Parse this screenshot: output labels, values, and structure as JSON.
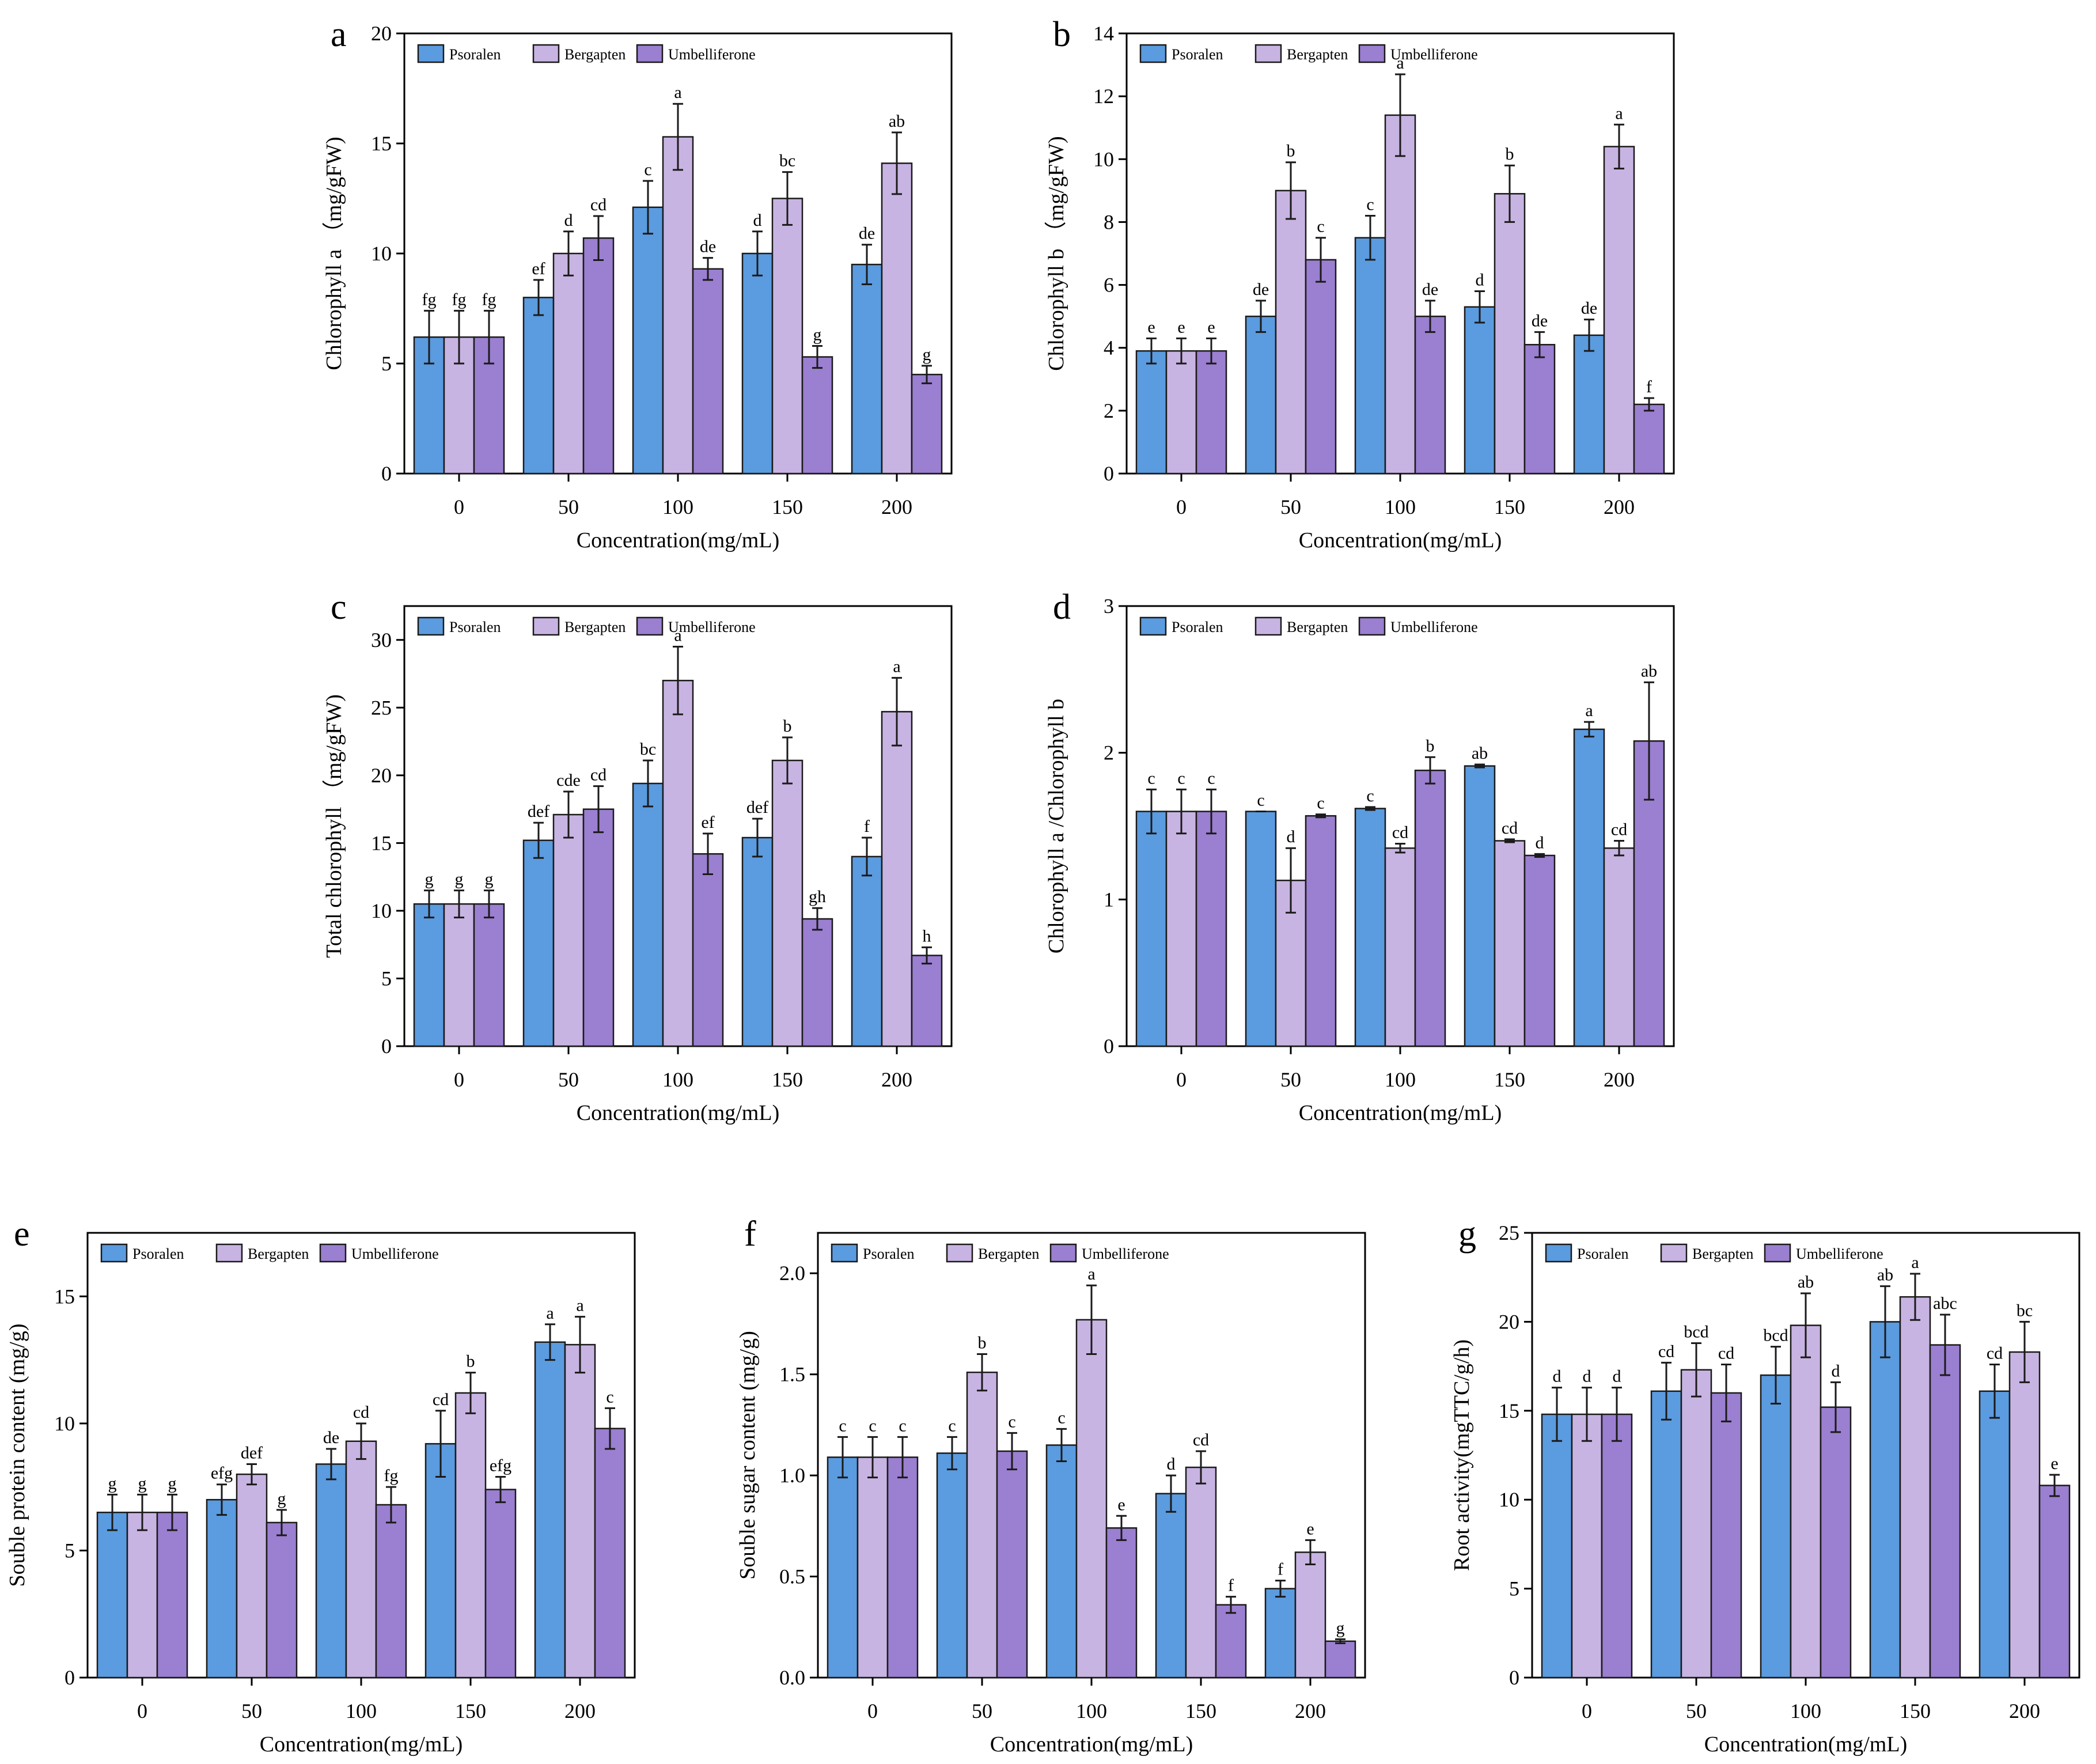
{
  "colors": {
    "psoralen": "#5b9bdf",
    "bergapten": "#c8b4e2",
    "umbelliferone": "#9b7fd0"
  },
  "chart_data": [
    {
      "panel": "a",
      "type": "bar",
      "xlabel": "Concentration(mg/mL)",
      "ylabel": "Chlorophyll a （mg/gFW)",
      "categories": [
        "0",
        "50",
        "100",
        "150",
        "200"
      ],
      "ylim": [
        0,
        20
      ],
      "yticks": [
        0,
        5,
        10,
        15,
        20
      ],
      "ytick_labels": [
        "0",
        "5",
        "10",
        "15",
        "20"
      ],
      "legend": [
        "Psoralen",
        "Bergapten",
        "Umbelliferone"
      ],
      "series": [
        {
          "name": "Psoralen",
          "values": [
            6.2,
            8.0,
            12.1,
            10.0,
            9.5
          ],
          "errors": [
            1.2,
            0.8,
            1.2,
            1.0,
            0.9
          ],
          "labels": [
            "fg",
            "ef",
            "c",
            "d",
            "de"
          ]
        },
        {
          "name": "Bergapten",
          "values": [
            6.2,
            10.0,
            15.3,
            12.5,
            14.1
          ],
          "errors": [
            1.2,
            1.0,
            1.5,
            1.2,
            1.4
          ],
          "labels": [
            "fg",
            "d",
            "a",
            "bc",
            "ab"
          ]
        },
        {
          "name": "Umbelliferone",
          "values": [
            6.2,
            10.7,
            9.3,
            5.3,
            4.5
          ],
          "errors": [
            1.2,
            1.0,
            0.5,
            0.5,
            0.4
          ],
          "labels": [
            "fg",
            "cd",
            "de",
            "g",
            "g"
          ]
        }
      ]
    },
    {
      "panel": "b",
      "type": "bar",
      "xlabel": "Concentration(mg/mL)",
      "ylabel": "Chlorophyll b （mg/gFW)",
      "categories": [
        "0",
        "50",
        "100",
        "150",
        "200"
      ],
      "ylim": [
        0,
        14
      ],
      "yticks": [
        0,
        2,
        4,
        6,
        8,
        10,
        12,
        14
      ],
      "ytick_labels": [
        "0",
        "2",
        "4",
        "6",
        "8",
        "10",
        "12",
        "14"
      ],
      "legend": [
        "Psoralen",
        "Bergapten",
        "Umbelliferone"
      ],
      "series": [
        {
          "name": "Psoralen",
          "values": [
            3.9,
            5.0,
            7.5,
            5.3,
            4.4
          ],
          "errors": [
            0.4,
            0.5,
            0.7,
            0.5,
            0.5
          ],
          "labels": [
            "e",
            "de",
            "c",
            "d",
            "de"
          ]
        },
        {
          "name": "Bergapten",
          "values": [
            3.9,
            9.0,
            11.4,
            8.9,
            10.4
          ],
          "errors": [
            0.4,
            0.9,
            1.3,
            0.9,
            0.7
          ],
          "labels": [
            "e",
            "b",
            "a",
            "b",
            "a"
          ]
        },
        {
          "name": "Umbelliferone",
          "values": [
            3.9,
            6.8,
            5.0,
            4.1,
            2.2
          ],
          "errors": [
            0.4,
            0.7,
            0.5,
            0.4,
            0.2
          ],
          "labels": [
            "e",
            "c",
            "de",
            "de",
            "f"
          ]
        }
      ]
    },
    {
      "panel": "c",
      "type": "bar",
      "xlabel": "Concentration(mg/mL)",
      "ylabel": "Total chlorophyll （mg/gFW)",
      "categories": [
        "0",
        "50",
        "100",
        "150",
        "200"
      ],
      "ylim": [
        0,
        32.5
      ],
      "yticks": [
        0,
        5,
        10,
        15,
        20,
        25,
        30
      ],
      "ytick_labels": [
        "0",
        "5",
        "10",
        "15",
        "20",
        "25",
        "30"
      ],
      "legend": [
        "Psoralen",
        "Bergapten",
        "Umbelliferone"
      ],
      "series": [
        {
          "name": "Psoralen",
          "values": [
            10.5,
            15.2,
            19.4,
            15.4,
            14.0
          ],
          "errors": [
            1.0,
            1.3,
            1.7,
            1.4,
            1.4
          ],
          "labels": [
            "g",
            "def",
            "bc",
            "def",
            "f"
          ]
        },
        {
          "name": "Bergapten",
          "values": [
            10.5,
            17.1,
            27.0,
            21.1,
            24.7
          ],
          "errors": [
            1.0,
            1.7,
            2.5,
            1.7,
            2.5
          ],
          "labels": [
            "g",
            "cde",
            "a",
            "b",
            "a"
          ]
        },
        {
          "name": "Umbelliferone",
          "values": [
            10.5,
            17.5,
            14.2,
            9.4,
            6.7
          ],
          "errors": [
            1.0,
            1.7,
            1.5,
            0.8,
            0.6
          ],
          "labels": [
            "g",
            "cd",
            "ef",
            "gh",
            "h"
          ]
        }
      ]
    },
    {
      "panel": "d",
      "type": "bar",
      "xlabel": "Concentration(mg/mL)",
      "ylabel": "Chlorophyll a /Chlorophyll b",
      "categories": [
        "0",
        "50",
        "100",
        "150",
        "200"
      ],
      "ylim": [
        0,
        3
      ],
      "yticks": [
        0,
        1,
        2,
        3
      ],
      "ytick_labels": [
        "0",
        "1",
        "2",
        "3"
      ],
      "legend": [
        "Psoralen",
        "Bergapten",
        "Umbelliferone"
      ],
      "series": [
        {
          "name": "Psoralen",
          "values": [
            1.6,
            1.6,
            1.62,
            1.91,
            2.16
          ],
          "errors": [
            0.15,
            0.0,
            0.01,
            0.01,
            0.05
          ],
          "labels": [
            "c",
            "c",
            "c",
            "ab",
            "a"
          ]
        },
        {
          "name": "Bergapten",
          "values": [
            1.6,
            1.13,
            1.35,
            1.4,
            1.35
          ],
          "errors": [
            0.15,
            0.22,
            0.03,
            0.01,
            0.05
          ],
          "labels": [
            "c",
            "d",
            "cd",
            "cd",
            "cd"
          ]
        },
        {
          "name": "Umbelliferone",
          "values": [
            1.6,
            1.57,
            1.88,
            1.3,
            2.08
          ],
          "errors": [
            0.15,
            0.01,
            0.09,
            0.01,
            0.4
          ],
          "labels": [
            "c",
            "c",
            "b",
            "d",
            "ab"
          ]
        }
      ]
    },
    {
      "panel": "e",
      "type": "bar",
      "xlabel": "Concentration(mg/mL)",
      "ylabel": "Souble protein content (mg/g)",
      "categories": [
        "0",
        "50",
        "100",
        "150",
        "200"
      ],
      "ylim": [
        0,
        17.5
      ],
      "yticks": [
        0,
        5,
        10,
        15
      ],
      "ytick_labels": [
        "0",
        "5",
        "10",
        "15"
      ],
      "legend": [
        "Psoralen",
        "Bergapten",
        "Umbelliferone"
      ],
      "series": [
        {
          "name": "Psoralen",
          "values": [
            6.5,
            7.0,
            8.4,
            9.2,
            13.2
          ],
          "errors": [
            0.7,
            0.6,
            0.6,
            1.3,
            0.7
          ],
          "labels": [
            "g",
            "efg",
            "de",
            "cd",
            "a"
          ]
        },
        {
          "name": "Bergapten",
          "values": [
            6.5,
            8.0,
            9.3,
            11.2,
            13.1
          ],
          "errors": [
            0.7,
            0.4,
            0.7,
            0.8,
            1.1
          ],
          "labels": [
            "g",
            "def",
            "cd",
            "b",
            "a"
          ]
        },
        {
          "name": "Umbelliferone",
          "values": [
            6.5,
            6.1,
            6.8,
            7.4,
            9.8
          ],
          "errors": [
            0.7,
            0.5,
            0.7,
            0.5,
            0.8
          ],
          "labels": [
            "g",
            "g",
            "fg",
            "efg",
            "c"
          ]
        }
      ]
    },
    {
      "panel": "f",
      "type": "bar",
      "xlabel": "Concentration(mg/mL)",
      "ylabel": "Souble sugar content (mg/g)",
      "categories": [
        "0",
        "50",
        "100",
        "150",
        "200"
      ],
      "ylim": [
        0,
        2.2
      ],
      "yticks": [
        0,
        0.5,
        1.0,
        1.5,
        2.0
      ],
      "ytick_labels": [
        "0.0",
        "0.5",
        "1.0",
        "1.5",
        "2.0"
      ],
      "legend": [
        "Psoralen",
        "Bergapten",
        "Umbelliferone"
      ],
      "series": [
        {
          "name": "Psoralen",
          "values": [
            1.09,
            1.11,
            1.15,
            0.91,
            0.44
          ],
          "errors": [
            0.1,
            0.08,
            0.08,
            0.09,
            0.04
          ],
          "labels": [
            "c",
            "c",
            "c",
            "d",
            "f"
          ]
        },
        {
          "name": "Bergapten",
          "values": [
            1.09,
            1.51,
            1.77,
            1.04,
            0.62
          ],
          "errors": [
            0.1,
            0.09,
            0.17,
            0.08,
            0.06
          ],
          "labels": [
            "c",
            "b",
            "a",
            "cd",
            "e"
          ]
        },
        {
          "name": "Umbelliferone",
          "values": [
            1.09,
            1.12,
            0.74,
            0.36,
            0.18
          ],
          "errors": [
            0.1,
            0.09,
            0.06,
            0.04,
            0.01
          ],
          "labels": [
            "c",
            "c",
            "e",
            "f",
            "g"
          ]
        }
      ]
    },
    {
      "panel": "g",
      "type": "bar",
      "xlabel": "Concentration(mg/mL)",
      "ylabel": "Root activity(mgTTC/g/h)",
      "categories": [
        "0",
        "50",
        "100",
        "150",
        "200"
      ],
      "ylim": [
        0,
        25
      ],
      "yticks": [
        0,
        5,
        10,
        15,
        20,
        25
      ],
      "ytick_labels": [
        "0",
        "5",
        "10",
        "15",
        "20",
        "25"
      ],
      "legend": [
        "Psoralen",
        "Bergapten",
        "Umbelliferone"
      ],
      "series": [
        {
          "name": "Psoralen",
          "values": [
            14.8,
            16.1,
            17.0,
            20.0,
            16.1
          ],
          "errors": [
            1.5,
            1.6,
            1.6,
            2.0,
            1.5
          ],
          "labels": [
            "d",
            "cd",
            "bcd",
            "ab",
            "cd"
          ]
        },
        {
          "name": "Bergapten",
          "values": [
            14.8,
            17.3,
            19.8,
            21.4,
            18.3
          ],
          "errors": [
            1.5,
            1.5,
            1.8,
            1.3,
            1.7
          ],
          "labels": [
            "d",
            "bcd",
            "ab",
            "a",
            "bc"
          ]
        },
        {
          "name": "Umbelliferone",
          "values": [
            14.8,
            16.0,
            15.2,
            18.7,
            10.8
          ],
          "errors": [
            1.5,
            1.6,
            1.4,
            1.7,
            0.6
          ],
          "labels": [
            "d",
            "cd",
            "d",
            "abc",
            "e"
          ]
        }
      ]
    }
  ]
}
